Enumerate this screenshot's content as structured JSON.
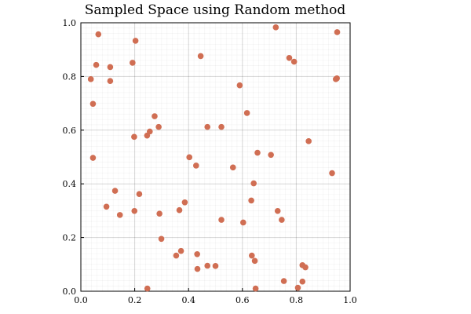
{
  "chart_data": {
    "type": "scatter",
    "title": "Sampled Space using Random method",
    "xlabel": "",
    "ylabel": "",
    "xlim": [
      0.0,
      1.0
    ],
    "ylim": [
      0.0,
      1.0
    ],
    "xticks": [
      0.0,
      0.2,
      0.4,
      0.6,
      0.8,
      1.0
    ],
    "yticks": [
      0.0,
      0.2,
      0.4,
      0.6,
      0.8,
      1.0
    ],
    "xtick_labels": [
      "0.0",
      "0.2",
      "0.4",
      "0.6",
      "0.8",
      "1.0"
    ],
    "ytick_labels": [
      "0.0",
      "0.2",
      "0.4",
      "0.6",
      "0.8",
      "1.0"
    ],
    "grid": true,
    "minor_grid": true,
    "legend": false,
    "marker_color": "#d06e53",
    "series": [
      {
        "x": [
          0.065,
          0.203,
          0.445,
          0.724,
          0.952,
          0.057,
          0.109,
          0.192,
          0.774,
          0.792,
          0.037,
          0.109,
          0.59,
          0.951,
          0.947,
          0.045,
          0.274,
          0.617,
          0.289,
          0.47,
          0.522,
          0.198,
          0.256,
          0.246,
          0.656,
          0.846,
          0.706,
          0.403,
          0.045,
          0.428,
          0.565,
          0.933,
          0.642,
          0.127,
          0.217,
          0.386,
          0.095,
          0.633,
          0.199,
          0.366,
          0.292,
          0.145,
          0.731,
          0.522,
          0.603,
          0.746,
          0.299,
          0.372,
          0.432,
          0.354,
          0.635,
          0.646,
          0.823,
          0.47,
          0.5,
          0.433,
          0.834,
          0.823,
          0.754,
          0.247,
          0.649,
          0.806
        ],
        "y": [
          0.957,
          0.933,
          0.876,
          0.983,
          0.965,
          0.843,
          0.835,
          0.851,
          0.869,
          0.855,
          0.79,
          0.783,
          0.767,
          0.793,
          0.79,
          0.698,
          0.652,
          0.664,
          0.612,
          0.612,
          0.612,
          0.575,
          0.595,
          0.58,
          0.516,
          0.559,
          0.508,
          0.499,
          0.497,
          0.468,
          0.461,
          0.44,
          0.402,
          0.374,
          0.362,
          0.331,
          0.315,
          0.338,
          0.299,
          0.302,
          0.289,
          0.284,
          0.299,
          0.266,
          0.256,
          0.266,
          0.195,
          0.15,
          0.138,
          0.133,
          0.133,
          0.113,
          0.097,
          0.095,
          0.094,
          0.083,
          0.089,
          0.036,
          0.038,
          0.01,
          0.01,
          0.013
        ]
      }
    ]
  }
}
